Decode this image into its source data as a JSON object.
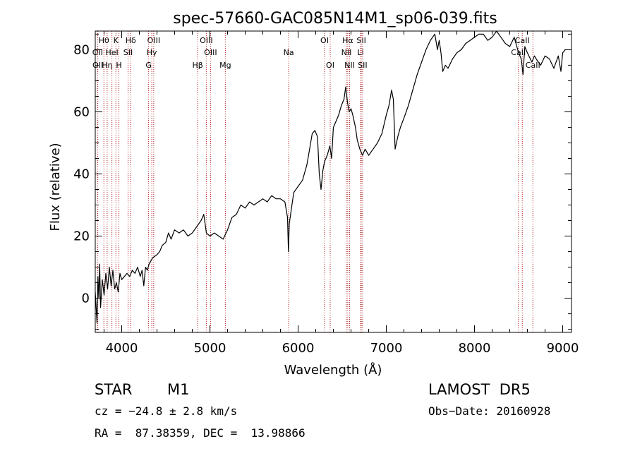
{
  "chart_data": {
    "type": "line",
    "title": "spec-57660-GAC085N14M1_sp06-039.fits",
    "xlabel": "Wavelength (Å)",
    "ylabel": "Flux (relative)",
    "xlim": [
      3700,
      9100
    ],
    "ylim": [
      -11,
      86
    ],
    "xticks": [
      4000,
      5000,
      6000,
      7000,
      8000,
      9000
    ],
    "yticks": [
      0,
      20,
      40,
      60,
      80
    ],
    "grid": false,
    "line_color": "#000000",
    "marker_color": "#b22222",
    "series": [
      {
        "values": [
          [
            3700,
            2
          ],
          [
            3720,
            -8
          ],
          [
            3730,
            7
          ],
          [
            3740,
            0
          ],
          [
            3750,
            11
          ],
          [
            3760,
            -3
          ],
          [
            3780,
            6
          ],
          [
            3800,
            1
          ],
          [
            3820,
            8
          ],
          [
            3840,
            3
          ],
          [
            3860,
            10
          ],
          [
            3880,
            4
          ],
          [
            3900,
            9
          ],
          [
            3920,
            3
          ],
          [
            3940,
            5
          ],
          [
            3960,
            2
          ],
          [
            3980,
            8
          ],
          [
            4000,
            6
          ],
          [
            4030,
            7
          ],
          [
            4060,
            8
          ],
          [
            4090,
            7
          ],
          [
            4120,
            9
          ],
          [
            4150,
            8
          ],
          [
            4180,
            10
          ],
          [
            4210,
            7
          ],
          [
            4230,
            9
          ],
          [
            4250,
            4
          ],
          [
            4270,
            10
          ],
          [
            4290,
            9
          ],
          [
            4310,
            11
          ],
          [
            4350,
            13
          ],
          [
            4400,
            14
          ],
          [
            4430,
            15
          ],
          [
            4460,
            17
          ],
          [
            4500,
            18
          ],
          [
            4530,
            21
          ],
          [
            4560,
            19
          ],
          [
            4600,
            22
          ],
          [
            4650,
            21
          ],
          [
            4700,
            22
          ],
          [
            4750,
            20
          ],
          [
            4800,
            21
          ],
          [
            4850,
            23
          ],
          [
            4900,
            25
          ],
          [
            4930,
            27
          ],
          [
            4960,
            21
          ],
          [
            5000,
            20
          ],
          [
            5050,
            21
          ],
          [
            5100,
            20
          ],
          [
            5150,
            19
          ],
          [
            5200,
            22
          ],
          [
            5250,
            26
          ],
          [
            5300,
            27
          ],
          [
            5350,
            30
          ],
          [
            5400,
            29
          ],
          [
            5450,
            31
          ],
          [
            5500,
            30
          ],
          [
            5550,
            31
          ],
          [
            5600,
            32
          ],
          [
            5650,
            31
          ],
          [
            5700,
            33
          ],
          [
            5750,
            32
          ],
          [
            5800,
            32
          ],
          [
            5850,
            31
          ],
          [
            5880,
            26
          ],
          [
            5890,
            15
          ],
          [
            5900,
            24
          ],
          [
            5950,
            34
          ],
          [
            6000,
            36
          ],
          [
            6050,
            38
          ],
          [
            6100,
            43
          ],
          [
            6130,
            48
          ],
          [
            6160,
            53
          ],
          [
            6190,
            54
          ],
          [
            6220,
            52
          ],
          [
            6240,
            40
          ],
          [
            6260,
            35
          ],
          [
            6280,
            41
          ],
          [
            6300,
            44
          ],
          [
            6330,
            46
          ],
          [
            6360,
            49
          ],
          [
            6380,
            45
          ],
          [
            6400,
            55
          ],
          [
            6430,
            57
          ],
          [
            6460,
            59
          ],
          [
            6490,
            62
          ],
          [
            6520,
            64
          ],
          [
            6540,
            68
          ],
          [
            6560,
            63
          ],
          [
            6580,
            60
          ],
          [
            6600,
            61
          ],
          [
            6620,
            59
          ],
          [
            6650,
            55
          ],
          [
            6670,
            51
          ],
          [
            6700,
            48
          ],
          [
            6730,
            46
          ],
          [
            6760,
            48
          ],
          [
            6800,
            46
          ],
          [
            6850,
            48
          ],
          [
            6900,
            50
          ],
          [
            6950,
            53
          ],
          [
            7000,
            59
          ],
          [
            7030,
            62
          ],
          [
            7060,
            67
          ],
          [
            7080,
            64
          ],
          [
            7100,
            48
          ],
          [
            7130,
            52
          ],
          [
            7160,
            55
          ],
          [
            7200,
            58
          ],
          [
            7250,
            62
          ],
          [
            7300,
            67
          ],
          [
            7350,
            72
          ],
          [
            7400,
            76
          ],
          [
            7450,
            80
          ],
          [
            7500,
            83
          ],
          [
            7550,
            85
          ],
          [
            7580,
            80
          ],
          [
            7600,
            83
          ],
          [
            7620,
            79
          ],
          [
            7640,
            73
          ],
          [
            7670,
            75
          ],
          [
            7700,
            74
          ],
          [
            7750,
            77
          ],
          [
            7800,
            79
          ],
          [
            7850,
            80
          ],
          [
            7900,
            82
          ],
          [
            7950,
            83
          ],
          [
            8000,
            84
          ],
          [
            8050,
            85
          ],
          [
            8100,
            85
          ],
          [
            8150,
            83
          ],
          [
            8200,
            84
          ],
          [
            8250,
            86
          ],
          [
            8300,
            84
          ],
          [
            8350,
            82
          ],
          [
            8400,
            81
          ],
          [
            8450,
            84
          ],
          [
            8500,
            79
          ],
          [
            8530,
            77
          ],
          [
            8550,
            72
          ],
          [
            8570,
            81
          ],
          [
            8600,
            79
          ],
          [
            8650,
            76
          ],
          [
            8680,
            78
          ],
          [
            8700,
            77
          ],
          [
            8750,
            75
          ],
          [
            8800,
            78
          ],
          [
            8850,
            77
          ],
          [
            8900,
            74
          ],
          [
            8950,
            78
          ],
          [
            8980,
            73
          ],
          [
            9000,
            79
          ],
          [
            9030,
            80
          ]
        ]
      }
    ],
    "lines": [
      {
        "label": "Hθ",
        "x": 3798,
        "row": 1
      },
      {
        "label": "OII",
        "x": 3727,
        "row": 2
      },
      {
        "label": "OII",
        "x": 3729,
        "row": 3
      },
      {
        "label": "Hη",
        "x": 3835,
        "row": 3
      },
      {
        "label": "K",
        "x": 3934,
        "row": 1
      },
      {
        "label": "HeI",
        "x": 3889,
        "row": 2
      },
      {
        "label": "H",
        "x": 3968,
        "row": 3
      },
      {
        "label": "Hδ",
        "x": 4102,
        "row": 1
      },
      {
        "label": "SII",
        "x": 4072,
        "row": 2
      },
      {
        "label": "OIII",
        "x": 4363,
        "row": 1
      },
      {
        "label": "Hγ",
        "x": 4341,
        "row": 2
      },
      {
        "label": "G",
        "x": 4305,
        "row": 3
      },
      {
        "label": "OIII",
        "x": 4959,
        "row": 1
      },
      {
        "label": "OIII",
        "x": 5007,
        "row": 2
      },
      {
        "label": "Hβ",
        "x": 4861,
        "row": 3
      },
      {
        "label": "Mg",
        "x": 5175,
        "row": 3
      },
      {
        "label": "Na",
        "x": 5893,
        "row": 2
      },
      {
        "label": "OI",
        "x": 6300,
        "row": 1
      },
      {
        "label": "OI",
        "x": 6364,
        "row": 3
      },
      {
        "label": "Hα",
        "x": 6563,
        "row": 1
      },
      {
        "label": "NII",
        "x": 6548,
        "row": 2
      },
      {
        "label": "NII",
        "x": 6584,
        "row": 3
      },
      {
        "label": "SII",
        "x": 6717,
        "row": 1
      },
      {
        "label": "Li",
        "x": 6708,
        "row": 2
      },
      {
        "label": "SII",
        "x": 6731,
        "row": 3
      },
      {
        "label": "CaII",
        "x": 8542,
        "row": 1
      },
      {
        "label": "CaII",
        "x": 8498,
        "row": 2
      },
      {
        "label": "CaII",
        "x": 8662,
        "row": 3
      }
    ]
  },
  "info": {
    "class_label": "STAR",
    "subclass": "M1",
    "survey": "LAMOST  DR5",
    "cz": "cz = −24.8 ± 2.8 km/s",
    "obs_date": "Obs−Date: 20160928",
    "coords": "RA =  87.38359, DEC =  13.98866"
  }
}
